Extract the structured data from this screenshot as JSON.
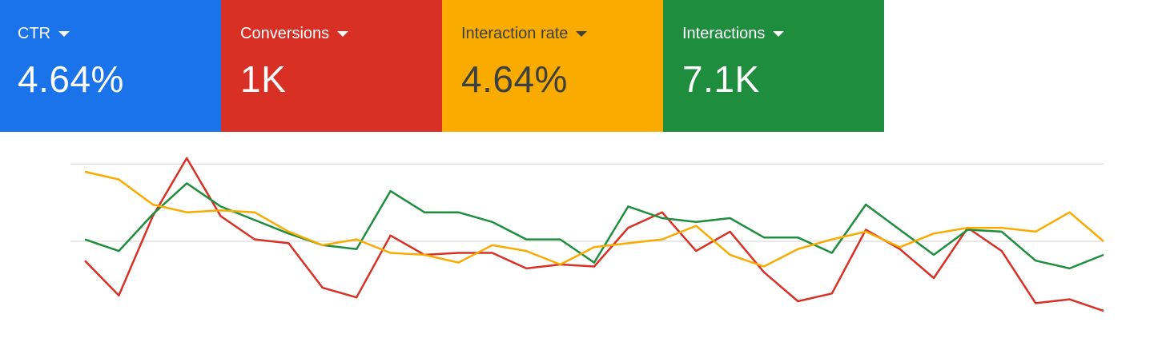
{
  "metrics": [
    {
      "label": "CTR",
      "value": "4.64%",
      "color": "#1a73e8"
    },
    {
      "label": "Conversions",
      "value": "1K",
      "color": "#d93025"
    },
    {
      "label": "Interaction rate",
      "value": "4.64%",
      "color": "#f9ab00"
    },
    {
      "label": "Interactions",
      "value": "7.1K",
      "color": "#1e8e3e"
    }
  ],
  "chart_data": {
    "type": "line",
    "title": "",
    "xlabel": "",
    "ylabel": "",
    "ylim": [
      0,
      100
    ],
    "x": [
      1,
      2,
      3,
      4,
      5,
      6,
      7,
      8,
      9,
      10,
      11,
      12,
      13,
      14,
      15,
      16,
      17,
      18,
      19,
      20,
      21,
      22,
      23,
      24,
      25,
      26,
      27,
      28,
      29,
      30,
      31
    ],
    "gridlines": [
      90,
      50
    ],
    "series": [
      {
        "name": "Conversions",
        "color": "#d93025",
        "values": [
          40,
          22,
          63,
          93,
          63,
          51,
          49,
          26,
          21,
          53,
          43,
          44,
          44,
          36,
          38,
          37,
          57,
          65,
          45,
          55,
          34,
          19,
          23,
          56,
          46,
          31,
          57,
          45,
          18,
          20,
          14
        ]
      },
      {
        "name": "Interactions",
        "color": "#1e8e3e",
        "values": [
          51,
          45,
          64,
          80,
          68,
          61,
          54,
          48,
          46,
          76,
          65,
          65,
          60,
          51,
          51,
          39,
          68,
          62,
          60,
          62,
          52,
          52,
          44,
          69,
          56,
          43,
          56,
          55,
          40,
          36,
          43
        ]
      },
      {
        "name": "Interaction rate",
        "color": "#f9ab00",
        "values": [
          86,
          82,
          69,
          65,
          66,
          65,
          55,
          48,
          51,
          44,
          43,
          39,
          48,
          45,
          38,
          47,
          49,
          51,
          58,
          43,
          37,
          46,
          51,
          55,
          47,
          54,
          57,
          57,
          55,
          65,
          50
        ]
      }
    ]
  }
}
